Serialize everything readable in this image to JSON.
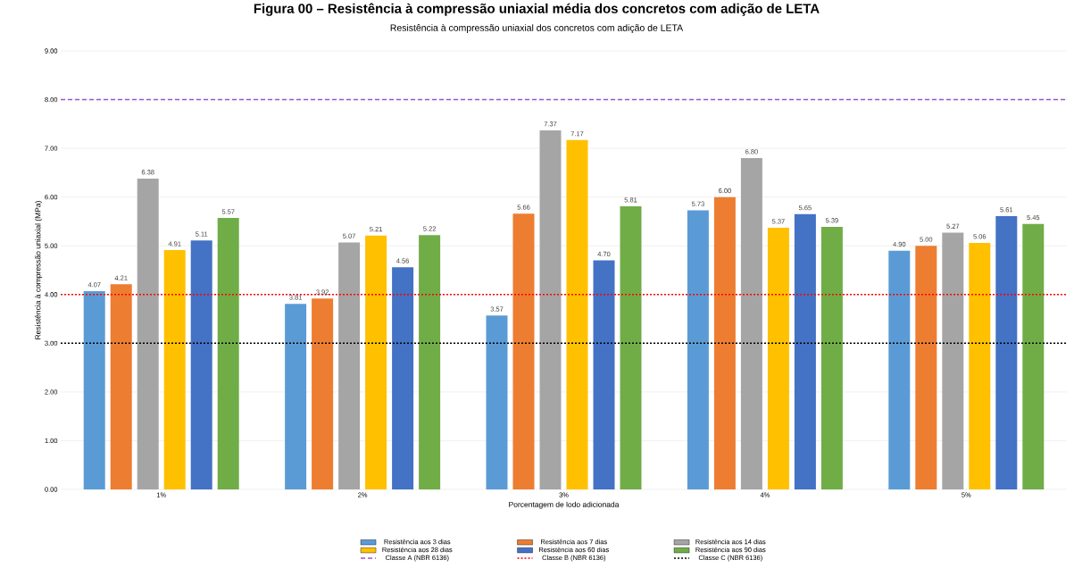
{
  "chart_data": {
    "type": "bar",
    "title": "Resistência à compressão uniaxial dos concretos com adição de LETA",
    "annotations": [
      "Figura 00 – Resistência à compressão uniaxial média dos concretos com adição de LETA"
    ],
    "xlabel": "Porcentagem de lodo adicionada",
    "ylabel": "Resistência à compressão uniaxial (MPa)",
    "categories": [
      "1%",
      "2%",
      "3%",
      "4%",
      "5%"
    ],
    "series": [
      {
        "name": "Resistência aos 3 dias",
        "color": "#5b9bd5",
        "values": [
          4.07,
          3.81,
          3.57,
          5.73,
          4.9
        ],
        "value_labels": [
          "4.07",
          "3.81",
          "3.57",
          "5.73",
          "4.90"
        ]
      },
      {
        "name": "Resistência aos 7 dias",
        "color": "#ed7d31",
        "values": [
          4.21,
          3.92,
          5.66,
          6.0,
          5.0
        ],
        "value_labels": [
          "4.21",
          "3.92",
          "5.66",
          "6.00",
          "5.00"
        ]
      },
      {
        "name": "Resistência aos 14 dias",
        "color": "#a5a5a5",
        "values": [
          6.38,
          5.07,
          7.37,
          6.8,
          5.27
        ],
        "value_labels": [
          "6.38",
          "5.07",
          "7.37",
          "6.80",
          "5.27"
        ]
      },
      {
        "name": "Resistência aos 28 dias",
        "color": "#ffc000",
        "values": [
          4.91,
          5.21,
          7.17,
          5.37,
          5.06
        ],
        "value_labels": [
          "4.91",
          "5.21",
          "7.17",
          "5.37",
          "5.06"
        ]
      },
      {
        "name": "Resistência aos 60 dias",
        "color": "#4472c4",
        "values": [
          5.11,
          4.56,
          4.7,
          5.65,
          5.61
        ],
        "value_labels": [
          "5.11",
          "4.56",
          "4.70",
          "5.65",
          "5.61"
        ]
      },
      {
        "name": "Resistência aos 90 dias",
        "color": "#70ad47",
        "values": [
          5.57,
          5.22,
          5.81,
          5.39,
          5.45
        ],
        "value_labels": [
          "5.57",
          "5.22",
          "5.81",
          "5.39",
          "5.45"
        ]
      }
    ],
    "ref_lines": [
      {
        "axis": "y",
        "value": 8,
        "label": "Classe A (NBR 6136)",
        "color": "#9955cc",
        "line_style": "dashed"
      },
      {
        "axis": "y",
        "value": 4,
        "label": "Classe B (NBR 6136)",
        "color": "#ff0000",
        "line_style": "dotted"
      },
      {
        "axis": "y",
        "value": 3,
        "label": "Classe C (NBR 6136)",
        "color": "#000000",
        "line_style": "dotted"
      }
    ],
    "ylim": [
      0,
      9
    ],
    "yticks": [
      {
        "value": 0,
        "label": "0.00"
      },
      {
        "value": 1,
        "label": "1.00"
      },
      {
        "value": 2,
        "label": "2.00"
      },
      {
        "value": 3,
        "label": "3.00"
      },
      {
        "value": 4,
        "label": "4.00"
      },
      {
        "value": 5,
        "label": "5.00"
      },
      {
        "value": 6,
        "label": "6.00"
      },
      {
        "value": 7,
        "label": "7.00"
      },
      {
        "value": 8,
        "label": "8.00"
      },
      {
        "value": 9,
        "label": "9.00"
      }
    ],
    "grid": "y",
    "legend": "bottom"
  }
}
